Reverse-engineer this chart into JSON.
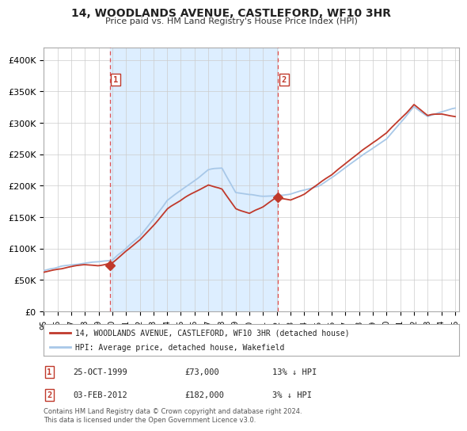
{
  "title": "14, WOODLANDS AVENUE, CASTLEFORD, WF10 3HR",
  "subtitle": "Price paid vs. HM Land Registry's House Price Index (HPI)",
  "legend_line1": "14, WOODLANDS AVENUE, CASTLEFORD, WF10 3HR (detached house)",
  "legend_line2": "HPI: Average price, detached house, Wakefield",
  "table_rows": [
    {
      "num": "1",
      "date": "25-OCT-1999",
      "price": "£73,000",
      "pct": "13% ↓ HPI"
    },
    {
      "num": "2",
      "date": "03-FEB-2012",
      "price": "£182,000",
      "pct": "3% ↓ HPI"
    }
  ],
  "footnote": "Contains HM Land Registry data © Crown copyright and database right 2024.\nThis data is licensed under the Open Government Licence v3.0.",
  "sale1_year": 1999.82,
  "sale1_price": 73000,
  "sale2_year": 2012.09,
  "sale2_price": 182000,
  "hpi_color": "#a8c8e8",
  "price_color": "#c0392b",
  "vline_color": "#e05050",
  "shade_color": "#ddeeff",
  "dot_color": "#c0392b",
  "grid_color": "#cccccc",
  "bg_color": "#ffffff",
  "ylim": [
    0,
    420000
  ],
  "yticks": [
    0,
    50000,
    100000,
    150000,
    200000,
    250000,
    300000,
    350000,
    400000
  ],
  "ytick_labels": [
    "£0",
    "£50K",
    "£100K",
    "£150K",
    "£200K",
    "£250K",
    "£300K",
    "£350K",
    "£400K"
  ],
  "year_start": 1995,
  "year_end": 2025
}
